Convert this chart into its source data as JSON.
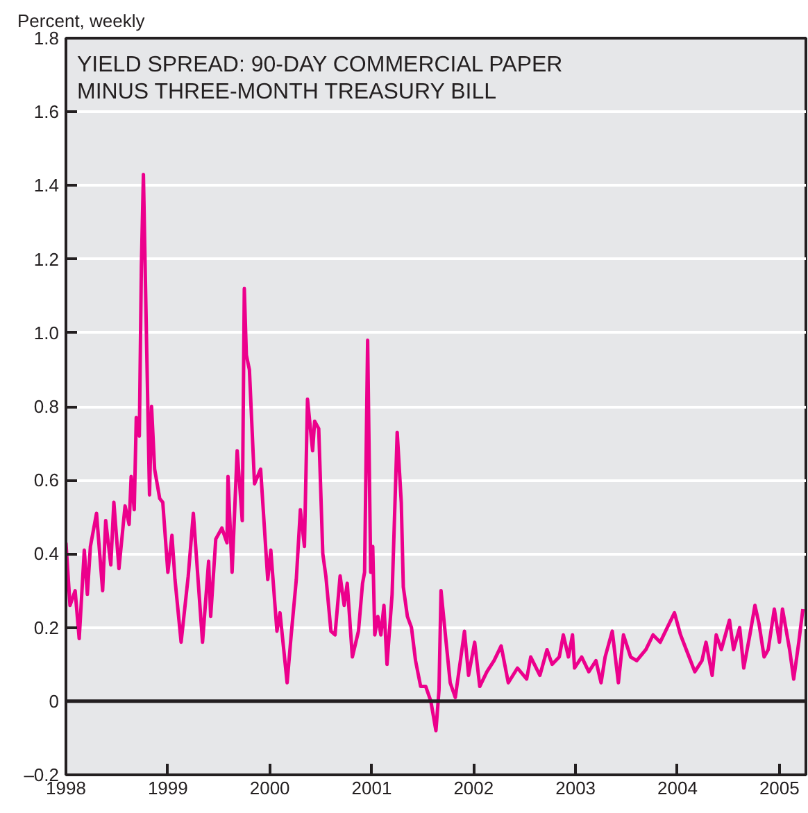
{
  "chart_data": {
    "type": "line",
    "title": "YIELD SPREAD: 90-DAY COMMERCIAL PAPER\nMINUS THREE-MONTH TREASURY BILL",
    "ylabel": "Percent, weekly",
    "x": [
      1998.0,
      1998.04,
      1998.09,
      1998.13,
      1998.18,
      1998.21,
      1998.24,
      1998.3,
      1998.36,
      1998.39,
      1998.44,
      1998.47,
      1998.52,
      1998.58,
      1998.62,
      1998.64,
      1998.67,
      1998.69,
      1998.72,
      1998.74,
      1998.76,
      1998.79,
      1998.82,
      1998.84,
      1998.87,
      1998.92,
      1998.95,
      1999.0,
      1999.04,
      1999.07,
      1999.13,
      1999.2,
      1999.25,
      1999.34,
      1999.4,
      1999.42,
      1999.47,
      1999.53,
      1999.58,
      1999.59,
      1999.63,
      1999.68,
      1999.73,
      1999.75,
      1999.77,
      1999.8,
      1999.85,
      1999.91,
      1999.98,
      2000.01,
      2000.07,
      2000.1,
      2000.17,
      2000.21,
      2000.26,
      2000.3,
      2000.34,
      2000.37,
      2000.42,
      2000.44,
      2000.48,
      2000.52,
      2000.55,
      2000.6,
      2000.64,
      2000.69,
      2000.73,
      2000.76,
      2000.81,
      2000.87,
      2000.91,
      2000.93,
      2000.96,
      2000.99,
      2001.01,
      2001.03,
      2001.06,
      2001.09,
      2001.12,
      2001.15,
      2001.2,
      2001.25,
      2001.29,
      2001.31,
      2001.35,
      2001.39,
      2001.43,
      2001.48,
      2001.53,
      2001.58,
      2001.63,
      2001.66,
      2001.68,
      2001.73,
      2001.77,
      2001.82,
      2001.86,
      2001.91,
      2001.95,
      2002.01,
      2002.06,
      2002.13,
      2002.2,
      2002.27,
      2002.34,
      2002.43,
      2002.52,
      2002.56,
      2002.65,
      2002.72,
      2002.77,
      2002.84,
      2002.88,
      2002.93,
      2002.97,
      2002.99,
      2003.06,
      2003.13,
      2003.2,
      2003.25,
      2003.29,
      2003.36,
      2003.42,
      2003.47,
      2003.54,
      2003.6,
      2003.69,
      2003.76,
      2003.83,
      2003.97,
      2004.03,
      2004.1,
      2004.17,
      2004.24,
      2004.28,
      2004.34,
      2004.38,
      2004.43,
      2004.51,
      2004.55,
      2004.61,
      2004.65,
      2004.71,
      2004.76,
      2004.8,
      2004.85,
      2004.89,
      2004.95,
      2005.0,
      2005.03,
      2005.1,
      2005.14,
      2005.19,
      2005.23
    ],
    "series": [
      {
        "color": "#ec008c",
        "values": [
          0.43,
          0.26,
          0.3,
          0.17,
          0.41,
          0.29,
          0.42,
          0.51,
          0.3,
          0.49,
          0.37,
          0.54,
          0.36,
          0.53,
          0.48,
          0.61,
          0.52,
          0.77,
          0.72,
          1.18,
          1.43,
          0.99,
          0.56,
          0.8,
          0.63,
          0.55,
          0.54,
          0.35,
          0.45,
          0.33,
          0.16,
          0.34,
          0.51,
          0.16,
          0.38,
          0.23,
          0.44,
          0.47,
          0.43,
          0.61,
          0.35,
          0.68,
          0.49,
          1.12,
          0.94,
          0.9,
          0.59,
          0.63,
          0.33,
          0.41,
          0.19,
          0.24,
          0.05,
          0.18,
          0.33,
          0.52,
          0.42,
          0.82,
          0.68,
          0.76,
          0.74,
          0.4,
          0.34,
          0.19,
          0.18,
          0.34,
          0.26,
          0.32,
          0.12,
          0.19,
          0.32,
          0.35,
          0.98,
          0.35,
          0.42,
          0.18,
          0.23,
          0.18,
          0.26,
          0.1,
          0.29,
          0.73,
          0.54,
          0.31,
          0.23,
          0.2,
          0.11,
          0.04,
          0.04,
          0.0,
          -0.08,
          0.03,
          0.3,
          0.16,
          0.05,
          0.01,
          0.09,
          0.19,
          0.07,
          0.16,
          0.04,
          0.08,
          0.11,
          0.15,
          0.05,
          0.09,
          0.06,
          0.12,
          0.07,
          0.14,
          0.1,
          0.12,
          0.18,
          0.12,
          0.18,
          0.09,
          0.12,
          0.08,
          0.11,
          0.05,
          0.12,
          0.19,
          0.05,
          0.18,
          0.12,
          0.11,
          0.14,
          0.18,
          0.16,
          0.24,
          0.18,
          0.13,
          0.08,
          0.11,
          0.16,
          0.07,
          0.18,
          0.14,
          0.22,
          0.14,
          0.2,
          0.09,
          0.18,
          0.26,
          0.21,
          0.12,
          0.14,
          0.25,
          0.16,
          0.25,
          0.14,
          0.06,
          0.16,
          0.25
        ]
      }
    ],
    "xlim": [
      1998,
      2005.26
    ],
    "xticks": [
      1998,
      1999,
      2000,
      2001,
      2002,
      2003,
      2004,
      2005
    ],
    "ylim": [
      -0.2,
      1.8
    ],
    "yticks": [
      {
        "value": -0.2,
        "label": "–0.2"
      },
      0,
      {
        "value": 0.2,
        "label": "0.2"
      },
      {
        "value": 0.4,
        "label": "0.4"
      },
      {
        "value": 0.6,
        "label": "0.6"
      },
      {
        "value": 0.8,
        "label": "0.8"
      },
      {
        "value": 1.0,
        "label": "1.0"
      },
      {
        "value": 1.2,
        "label": "1.2"
      },
      {
        "value": 1.4,
        "label": "1.4"
      },
      {
        "value": 1.6,
        "label": "1.6"
      },
      {
        "value": 1.8,
        "label": "1.8"
      }
    ],
    "ref_lines": [
      {
        "axis": "y",
        "value": 0,
        "color": "#231f20"
      }
    ],
    "grid": "y",
    "marker": "none",
    "line_style": "solid"
  }
}
